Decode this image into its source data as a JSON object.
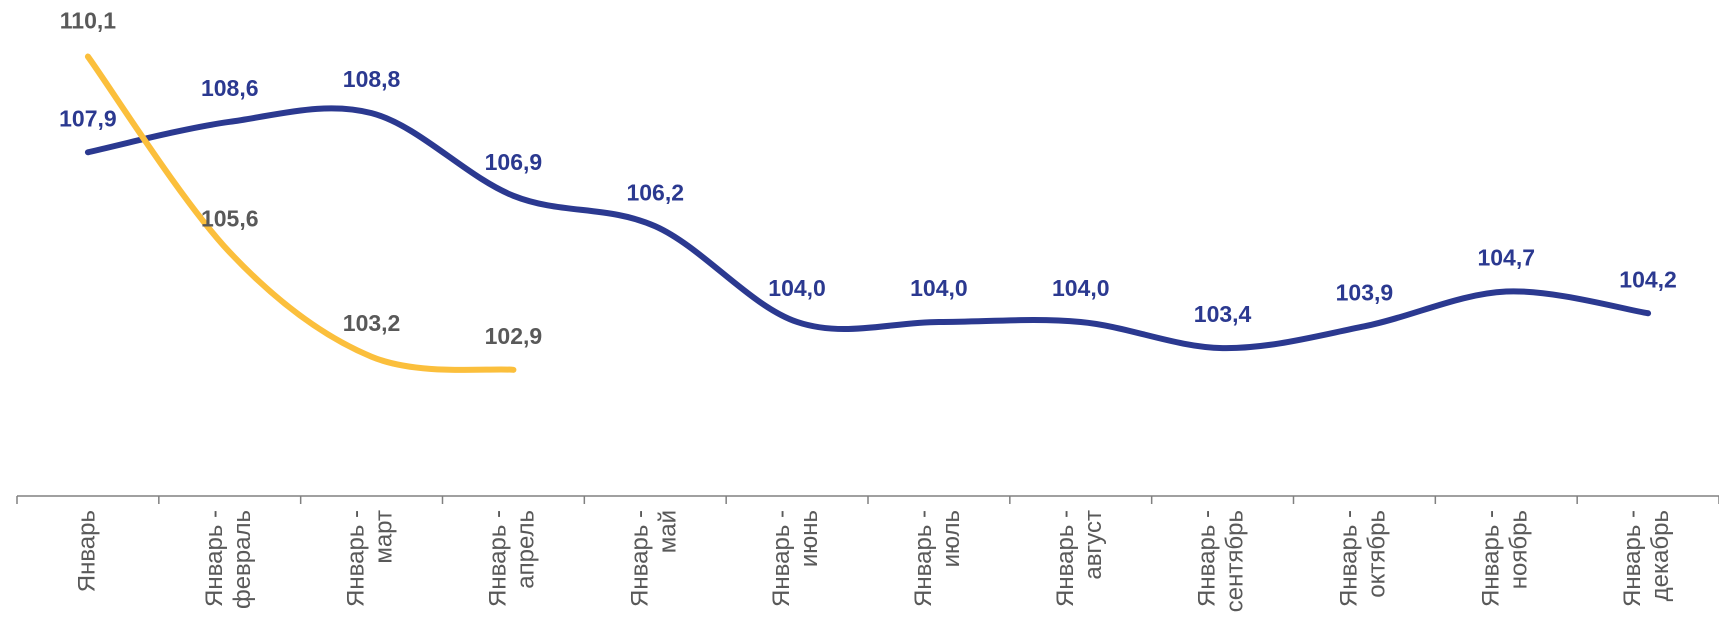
{
  "chart_data": {
    "type": "line",
    "categories": [
      "Январь",
      "Январь - февраль",
      "Январь - март",
      "Январь - апрель",
      "Январь - май",
      "Январь - июнь",
      "Январь - июль",
      "Январь - август",
      "Январь - сентябрь",
      "Январь - октябрь",
      "Январь - ноябрь",
      "Январь - декабрь"
    ],
    "series": [
      {
        "color": "#2b3990",
        "label_color": "#2b3990",
        "values": [
          107.9,
          108.6,
          108.8,
          106.9,
          106.2,
          104.0,
          104.0,
          104.0,
          103.4,
          103.9,
          104.7,
          104.2
        ],
        "value_labels": [
          "107,9",
          "108,6",
          "108,8",
          "106,9",
          "106,2",
          "104,0",
          "104,0",
          "104,0",
          "103,4",
          "103,9",
          "104,7",
          "104,2"
        ]
      },
      {
        "color": "#fbbf3c",
        "label_color": "#595959",
        "values": [
          110.1,
          105.6,
          103.2,
          102.9,
          null,
          null,
          null,
          null,
          null,
          null,
          null,
          null
        ],
        "value_labels": [
          "110,1",
          "105,6",
          "103,2",
          "102,9",
          null,
          null,
          null,
          null,
          null,
          null,
          null,
          null
        ]
      }
    ],
    "ylim": [
      100,
      111.4
    ]
  }
}
